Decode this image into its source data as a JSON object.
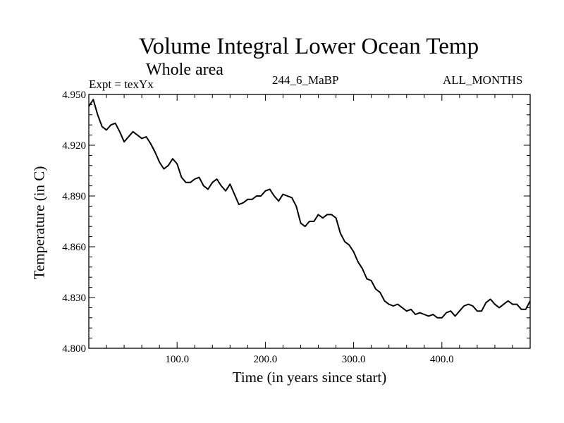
{
  "chart_data": {
    "type": "line",
    "title": "Volume Integral Lower Ocean Temp",
    "subtitle": "Whole area",
    "annotations": {
      "expt": "Expt = texYx",
      "run": "244_6_MaBP",
      "months": "ALL_MONTHS"
    },
    "xlabel": "Time (in years since start)",
    "ylabel": "Temperature (in C)",
    "xlim": [
      0,
      500
    ],
    "ylim": [
      4.8,
      4.95
    ],
    "xticks": [
      100,
      200,
      300,
      400
    ],
    "xtick_labels": [
      "100.0",
      "200.0",
      "300.0",
      "400.0"
    ],
    "yticks": [
      4.8,
      4.83,
      4.86,
      4.89,
      4.92,
      4.95
    ],
    "ytick_labels": [
      "4.800",
      "4.830",
      "4.860",
      "4.890",
      "4.920",
      "4.950"
    ],
    "grid": false,
    "series": [
      {
        "x": [
          0,
          5,
          10,
          15,
          20,
          25,
          30,
          35,
          40,
          45,
          50,
          55,
          60,
          65,
          70,
          75,
          80,
          85,
          90,
          95,
          100,
          105,
          110,
          115,
          120,
          125,
          130,
          135,
          140,
          145,
          150,
          155,
          160,
          165,
          170,
          175,
          180,
          185,
          190,
          195,
          200,
          205,
          210,
          215,
          220,
          225,
          230,
          235,
          240,
          245,
          250,
          255,
          260,
          265,
          270,
          275,
          280,
          285,
          290,
          295,
          300,
          305,
          310,
          315,
          320,
          325,
          330,
          335,
          340,
          345,
          350,
          355,
          360,
          365,
          370,
          375,
          380,
          385,
          390,
          395,
          400,
          405,
          410,
          415,
          420,
          425,
          430,
          435,
          440,
          445,
          450,
          455,
          460,
          465,
          470,
          475,
          480,
          485,
          490,
          495,
          500
        ],
        "y": [
          4.943,
          4.947,
          4.938,
          4.931,
          4.929,
          4.932,
          4.933,
          4.928,
          4.922,
          4.925,
          4.928,
          4.926,
          4.924,
          4.925,
          4.921,
          4.916,
          4.91,
          4.906,
          4.908,
          4.912,
          4.909,
          4.901,
          4.898,
          4.898,
          4.9,
          4.901,
          4.896,
          4.894,
          4.898,
          4.9,
          4.896,
          4.893,
          4.897,
          4.891,
          4.885,
          4.886,
          4.888,
          4.888,
          4.89,
          4.89,
          4.893,
          4.894,
          4.89,
          4.887,
          4.891,
          4.89,
          4.889,
          4.884,
          4.874,
          4.872,
          4.875,
          4.875,
          4.879,
          4.877,
          4.879,
          4.879,
          4.877,
          4.868,
          4.863,
          4.861,
          4.857,
          4.851,
          4.847,
          4.841,
          4.84,
          4.835,
          4.833,
          4.828,
          4.826,
          4.825,
          4.826,
          4.824,
          4.822,
          4.823,
          4.82,
          4.821,
          4.82,
          4.819,
          4.82,
          4.818,
          4.818,
          4.821,
          4.822,
          4.819,
          4.822,
          4.825,
          4.826,
          4.825,
          4.822,
          4.822,
          4.827,
          4.829,
          4.826,
          4.824,
          4.826,
          4.828,
          4.826,
          4.826,
          4.823,
          4.823,
          4.828
        ]
      }
    ]
  }
}
